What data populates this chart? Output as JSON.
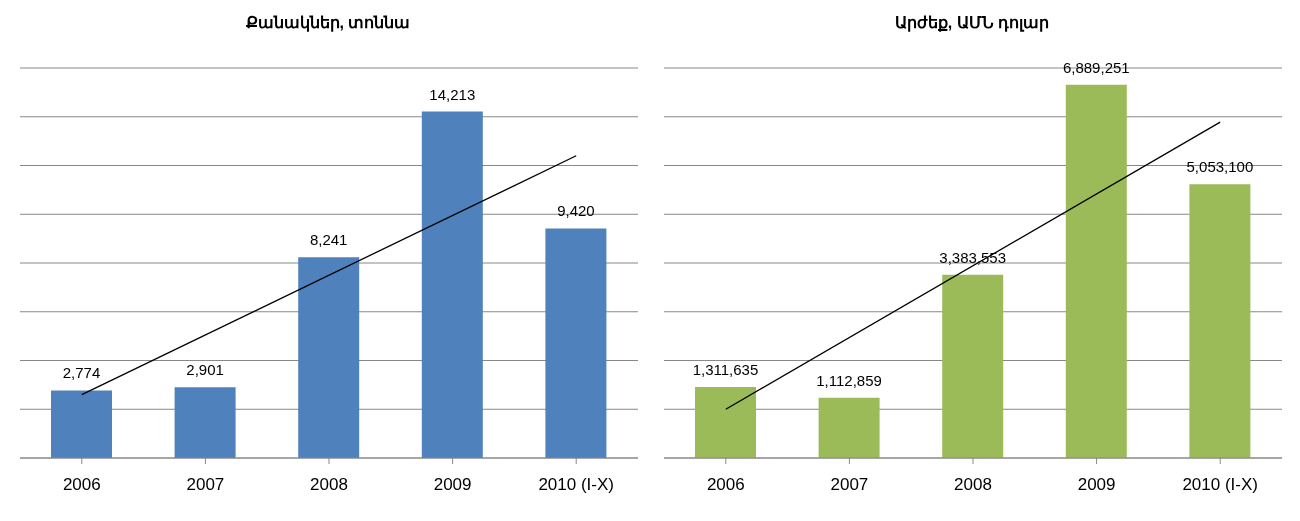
{
  "chart_data": [
    {
      "type": "bar",
      "title": "Քանակներ, տոննա",
      "categories": [
        "2006",
        "2007",
        "2008",
        "2009",
        "2010 (I-X)"
      ],
      "series": [
        {
          "color": "#4f81bd",
          "values": [
            2774,
            2901,
            8241,
            14213,
            9420
          ],
          "value_labels": [
            "2,774",
            "2,901",
            "8,241",
            "14,213",
            "9,420"
          ]
        },
        {
          "type": "line",
          "color": "#000000",
          "values": [
            2600,
            null,
            null,
            null,
            12400
          ]
        }
      ],
      "tick_labels": "x",
      "grid": "y",
      "legend": false,
      "marker": "none"
    },
    {
      "type": "bar",
      "title": "Արժեք, ԱՄՆ դոլար",
      "categories": [
        "2006",
        "2007",
        "2008",
        "2009",
        "2010 (I-X)"
      ],
      "series": [
        {
          "color": "#9bbb59",
          "values": [
            1311635,
            1112859,
            3383553,
            6889251,
            5053100
          ],
          "value_labels": [
            "1,311,635",
            "1,112,859",
            "3,383,553",
            "6,889,251",
            "5,053,100"
          ]
        },
        {
          "type": "line",
          "color": "#000000",
          "values": [
            900000,
            null,
            null,
            null,
            6200000
          ]
        }
      ],
      "tick_labels": "x",
      "grid": "y",
      "legend": false,
      "marker": "none"
    }
  ]
}
